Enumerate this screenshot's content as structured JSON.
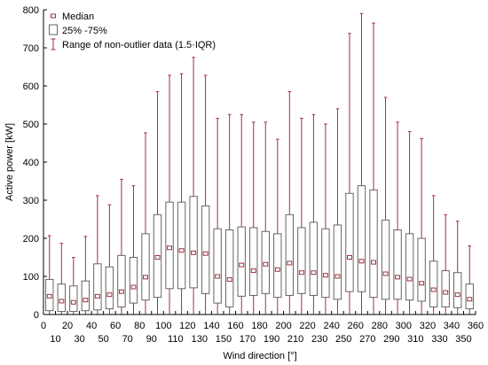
{
  "chart_data": {
    "type": "boxplot",
    "xlabel": "Wind direction [°]",
    "ylabel": "Active power [kW]",
    "xlim": [
      0,
      360
    ],
    "ylim": [
      0,
      800
    ],
    "x_ticks": [
      0,
      10,
      20,
      30,
      40,
      50,
      60,
      70,
      80,
      90,
      100,
      110,
      120,
      130,
      140,
      150,
      160,
      170,
      180,
      190,
      200,
      210,
      220,
      230,
      240,
      250,
      260,
      270,
      280,
      290,
      300,
      310,
      320,
      330,
      340,
      350,
      360
    ],
    "y_ticks": [
      0,
      100,
      200,
      300,
      400,
      500,
      600,
      700,
      800
    ],
    "grid": false,
    "legend_position": "top-left",
    "legend": {
      "median": "Median",
      "box": "25% -75%",
      "whisker": "Range of non-outlier data (1.5·IQR)"
    },
    "colors": {
      "box": "#666666",
      "median": "#a0303a",
      "whisker": "#a0303a",
      "axis": "#000000"
    },
    "boxes": [
      {
        "x": 5,
        "low": 0,
        "q1": 10,
        "median": 48,
        "q3": 92,
        "high": 207
      },
      {
        "x": 15,
        "low": 0,
        "q1": 8,
        "median": 35,
        "q3": 80,
        "high": 187
      },
      {
        "x": 25,
        "low": 0,
        "q1": 8,
        "median": 32,
        "q3": 75,
        "high": 150
      },
      {
        "x": 35,
        "low": 0,
        "q1": 10,
        "median": 38,
        "q3": 88,
        "high": 205
      },
      {
        "x": 45,
        "low": 0,
        "q1": 12,
        "median": 48,
        "q3": 133,
        "high": 312
      },
      {
        "x": 55,
        "low": 0,
        "q1": 15,
        "median": 52,
        "q3": 125,
        "high": 288
      },
      {
        "x": 65,
        "low": 0,
        "q1": 20,
        "median": 60,
        "q3": 155,
        "high": 355
      },
      {
        "x": 75,
        "low": 0,
        "q1": 30,
        "median": 72,
        "q3": 150,
        "high": 338
      },
      {
        "x": 85,
        "low": 0,
        "q1": 38,
        "median": 98,
        "q3": 212,
        "high": 477
      },
      {
        "x": 95,
        "low": 0,
        "q1": 45,
        "median": 150,
        "q3": 262,
        "high": 585
      },
      {
        "x": 105,
        "low": 0,
        "q1": 68,
        "median": 175,
        "q3": 295,
        "high": 628
      },
      {
        "x": 115,
        "low": 0,
        "q1": 68,
        "median": 168,
        "q3": 295,
        "high": 632
      },
      {
        "x": 125,
        "low": 0,
        "q1": 70,
        "median": 162,
        "q3": 310,
        "high": 675
      },
      {
        "x": 135,
        "low": 0,
        "q1": 55,
        "median": 160,
        "q3": 285,
        "high": 628
      },
      {
        "x": 145,
        "low": 0,
        "q1": 30,
        "median": 100,
        "q3": 225,
        "high": 515
      },
      {
        "x": 155,
        "low": 0,
        "q1": 20,
        "median": 92,
        "q3": 222,
        "high": 525
      },
      {
        "x": 165,
        "low": 0,
        "q1": 48,
        "median": 130,
        "q3": 230,
        "high": 525
      },
      {
        "x": 175,
        "low": 0,
        "q1": 50,
        "median": 115,
        "q3": 228,
        "high": 505
      },
      {
        "x": 185,
        "low": 0,
        "q1": 55,
        "median": 132,
        "q3": 218,
        "high": 505
      },
      {
        "x": 195,
        "low": 0,
        "q1": 45,
        "median": 118,
        "q3": 212,
        "high": 460
      },
      {
        "x": 205,
        "low": 0,
        "q1": 50,
        "median": 135,
        "q3": 262,
        "high": 585
      },
      {
        "x": 215,
        "low": 0,
        "q1": 55,
        "median": 110,
        "q3": 228,
        "high": 515
      },
      {
        "x": 225,
        "low": 0,
        "q1": 50,
        "median": 110,
        "q3": 242,
        "high": 525
      },
      {
        "x": 235,
        "low": 0,
        "q1": 45,
        "median": 103,
        "q3": 225,
        "high": 500
      },
      {
        "x": 245,
        "low": 0,
        "q1": 40,
        "median": 100,
        "q3": 235,
        "high": 540
      },
      {
        "x": 255,
        "low": 0,
        "q1": 60,
        "median": 150,
        "q3": 318,
        "high": 738
      },
      {
        "x": 265,
        "low": 0,
        "q1": 60,
        "median": 140,
        "q3": 338,
        "high": 790
      },
      {
        "x": 275,
        "low": 0,
        "q1": 45,
        "median": 137,
        "q3": 327,
        "high": 765
      },
      {
        "x": 285,
        "low": 0,
        "q1": 40,
        "median": 107,
        "q3": 248,
        "high": 570
      },
      {
        "x": 295,
        "low": 0,
        "q1": 40,
        "median": 98,
        "q3": 222,
        "high": 505
      },
      {
        "x": 305,
        "low": 0,
        "q1": 38,
        "median": 93,
        "q3": 212,
        "high": 480
      },
      {
        "x": 315,
        "low": 0,
        "q1": 35,
        "median": 82,
        "q3": 200,
        "high": 462
      },
      {
        "x": 325,
        "low": 0,
        "q1": 20,
        "median": 65,
        "q3": 140,
        "high": 312
      },
      {
        "x": 335,
        "low": 0,
        "q1": 20,
        "median": 58,
        "q3": 115,
        "high": 262
      },
      {
        "x": 345,
        "low": 0,
        "q1": 18,
        "median": 52,
        "q3": 110,
        "high": 245
      },
      {
        "x": 355,
        "low": 0,
        "q1": 15,
        "median": 40,
        "q3": 80,
        "high": 180
      }
    ]
  }
}
